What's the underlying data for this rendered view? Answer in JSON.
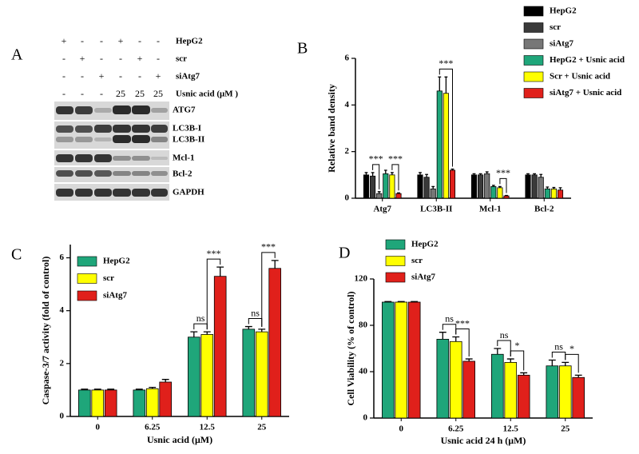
{
  "panel_labels": [
    "A",
    "B",
    "C",
    "D"
  ],
  "blot": {
    "treatments": [
      {
        "label": "HepG2",
        "signs": [
          "+",
          "-",
          "-",
          "+",
          "-",
          "-"
        ]
      },
      {
        "label": "scr",
        "signs": [
          "-",
          "+",
          "-",
          "-",
          "+",
          "-"
        ]
      },
      {
        "label": "siAtg7",
        "signs": [
          "-",
          "-",
          "+",
          "-",
          "-",
          "+"
        ]
      },
      {
        "label": "Usnic acid (μM )",
        "signs": [
          "-",
          "-",
          "-",
          "25",
          "25",
          "25"
        ]
      }
    ],
    "proteins": [
      "ATG7",
      "LC3B-I",
      "LC3B-II",
      "Mcl-1",
      "Bcl-2",
      "GAPDH"
    ]
  },
  "chart_data": [
    {
      "type": "bar",
      "ylabel": "Relative band density",
      "categories": [
        "Atg7",
        "LC3B-II",
        "Mcl-1",
        "Bcl-2"
      ],
      "series": [
        {
          "name": "HepG2",
          "color": "#000000",
          "values": [
            1.0,
            1.0,
            1.0,
            1.0
          ],
          "errors": [
            0.1,
            0.1,
            0.05,
            0.05
          ]
        },
        {
          "name": "scr",
          "color": "#3a3a3a",
          "values": [
            0.95,
            0.9,
            1.0,
            1.0
          ],
          "errors": [
            0.15,
            0.12,
            0.05,
            0.05
          ]
        },
        {
          "name": "siAtg7",
          "color": "#777777",
          "values": [
            0.2,
            0.4,
            1.05,
            0.9
          ],
          "errors": [
            0.08,
            0.1,
            0.08,
            0.12
          ]
        },
        {
          "name": "HepG2 + Usnic acid",
          "color": "#1fa67a",
          "values": [
            1.05,
            4.6,
            0.5,
            0.4
          ],
          "errors": [
            0.15,
            0.6,
            0.05,
            0.08
          ]
        },
        {
          "name": "Scr + Usnic acid",
          "color": "#ffff00",
          "values": [
            1.0,
            4.5,
            0.45,
            0.4
          ],
          "errors": [
            0.1,
            0.7,
            0.05,
            0.06
          ]
        },
        {
          "name": "siAtg7 + Usnic acid",
          "color": "#e0201b",
          "values": [
            0.2,
            1.2,
            0.1,
            0.35
          ],
          "errors": [
            0.03,
            0.05,
            0.02,
            0.1
          ]
        }
      ],
      "ylim": [
        0,
        6
      ],
      "yticks": [
        0,
        2,
        4,
        6
      ],
      "legend": "upper right",
      "annotations": [
        {
          "text": "***",
          "category": "Atg7",
          "between": [
            "scr",
            "siAtg7"
          ]
        },
        {
          "text": "***",
          "category": "Atg7",
          "between": [
            "Scr + Usnic acid",
            "siAtg7 + Usnic acid"
          ]
        },
        {
          "text": "***",
          "category": "LC3B-II",
          "between": [
            "HepG2 + Usnic acid",
            "siAtg7 + Usnic acid"
          ]
        },
        {
          "text": "***",
          "category": "Mcl-1",
          "between": [
            "Scr + Usnic acid",
            "siAtg7 + Usnic acid"
          ]
        }
      ]
    },
    {
      "type": "bar",
      "ylabel": "Caspase-3/7 activity (fold of control)",
      "xlabel": "Usnic acid (μM)",
      "categories": [
        "0",
        "6.25",
        "12.5",
        "25"
      ],
      "series": [
        {
          "name": "HepG2",
          "color": "#1fa67a",
          "values": [
            1.0,
            1.0,
            3.0,
            3.3
          ],
          "errors": [
            0.03,
            0.03,
            0.2,
            0.1
          ]
        },
        {
          "name": "scr",
          "color": "#ffff00",
          "values": [
            1.0,
            1.05,
            3.1,
            3.2
          ],
          "errors": [
            0.03,
            0.05,
            0.1,
            0.1
          ]
        },
        {
          "name": "siAtg7",
          "color": "#e0201b",
          "values": [
            1.0,
            1.3,
            5.3,
            5.6
          ],
          "errors": [
            0.03,
            0.1,
            0.35,
            0.3
          ]
        }
      ],
      "ylim": [
        0,
        6.5
      ],
      "yticks": [
        0,
        2,
        4,
        6
      ],
      "legend": "upper left",
      "annotations": [
        {
          "text": "ns",
          "category": "12.5",
          "between": [
            "HepG2",
            "scr"
          ]
        },
        {
          "text": "***",
          "category": "12.5",
          "between": [
            "scr",
            "siAtg7"
          ]
        },
        {
          "text": "ns",
          "category": "25",
          "between": [
            "HepG2",
            "scr"
          ]
        },
        {
          "text": "***",
          "category": "25",
          "between": [
            "scr",
            "siAtg7"
          ]
        }
      ]
    },
    {
      "type": "bar",
      "ylabel": "Cell Viability (% of control)",
      "xlabel": "Usnic acid 24 h (μM)",
      "categories": [
        "0",
        "6.25",
        "12.5",
        "25"
      ],
      "series": [
        {
          "name": "HepG2",
          "color": "#1fa67a",
          "values": [
            100,
            68,
            55,
            45
          ],
          "errors": [
            0.5,
            6,
            5,
            5
          ]
        },
        {
          "name": "scr",
          "color": "#ffff00",
          "values": [
            100,
            66,
            48,
            45
          ],
          "errors": [
            0.5,
            4,
            3,
            3
          ]
        },
        {
          "name": "siAtg7",
          "color": "#e0201b",
          "values": [
            100,
            49,
            37,
            35
          ],
          "errors": [
            0.5,
            2,
            2,
            2
          ]
        }
      ],
      "ylim": [
        0,
        120
      ],
      "yticks": [
        0,
        40,
        80,
        120
      ],
      "legend": "top",
      "annotations": [
        {
          "text": "ns",
          "category": "6.25",
          "between": [
            "HepG2",
            "scr"
          ]
        },
        {
          "text": "***",
          "category": "6.25",
          "between": [
            "scr",
            "siAtg7"
          ]
        },
        {
          "text": "ns",
          "category": "12.5",
          "between": [
            "HepG2",
            "scr"
          ]
        },
        {
          "text": "*",
          "category": "12.5",
          "between": [
            "scr",
            "siAtg7"
          ]
        },
        {
          "text": "ns",
          "category": "25",
          "between": [
            "HepG2",
            "scr"
          ]
        },
        {
          "text": "*",
          "category": "25",
          "between": [
            "scr",
            "siAtg7"
          ]
        }
      ]
    }
  ]
}
